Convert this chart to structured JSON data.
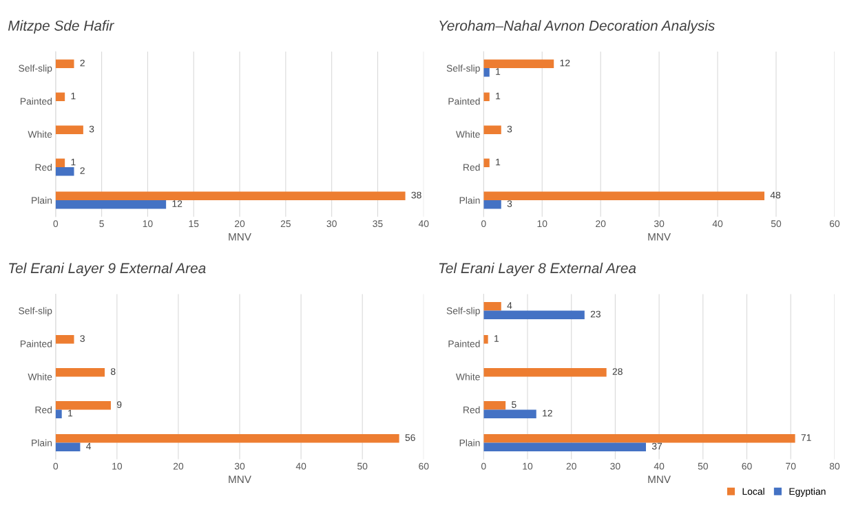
{
  "chart_data": [
    {
      "type": "bar",
      "orientation": "horizontal",
      "title": "Mitzpe Sde Hafir",
      "xlabel": "MNV",
      "categories": [
        "Self-slip",
        "Painted",
        "White",
        "Red",
        "Plain"
      ],
      "series": [
        {
          "color": "#ed7d31",
          "values": [
            2,
            1,
            3,
            1,
            38
          ]
        },
        {
          "color": "#4472c4",
          "values": [
            null,
            null,
            null,
            2,
            12
          ]
        }
      ],
      "xlim": [
        0,
        40
      ],
      "xticks": [
        0,
        5,
        10,
        15,
        20,
        25,
        30,
        35,
        40
      ],
      "grid": "x",
      "data_labels": true
    },
    {
      "type": "bar",
      "orientation": "horizontal",
      "title": "Yeroham–Nahal Avnon Decoration Analysis",
      "xlabel": "MNV",
      "categories": [
        "Self-slip",
        "Painted",
        "White",
        "Red",
        "Plain"
      ],
      "series": [
        {
          "color": "#ed7d31",
          "values": [
            12,
            1,
            3,
            1,
            48
          ]
        },
        {
          "color": "#4472c4",
          "values": [
            1,
            null,
            null,
            null,
            3
          ]
        }
      ],
      "xlim": [
        0,
        60
      ],
      "xticks": [
        0,
        10,
        20,
        30,
        40,
        50,
        60
      ],
      "grid": "x",
      "data_labels": true
    },
    {
      "type": "bar",
      "orientation": "horizontal",
      "title": "Tel Erani Layer 9 External Area",
      "xlabel": "MNV",
      "categories": [
        "Self-slip",
        "Painted",
        "White",
        "Red",
        "Plain"
      ],
      "series": [
        {
          "color": "#ed7d31",
          "values": [
            null,
            3,
            8,
            9,
            56
          ]
        },
        {
          "color": "#4472c4",
          "values": [
            null,
            null,
            null,
            1,
            4
          ]
        }
      ],
      "xlim": [
        0,
        60
      ],
      "xticks": [
        0,
        10,
        20,
        30,
        40,
        50,
        60
      ],
      "grid": "x",
      "data_labels": true
    },
    {
      "type": "bar",
      "orientation": "horizontal",
      "title": "Tel Erani Layer 8 External Area",
      "xlabel": "MNV",
      "categories": [
        "Self-slip",
        "Painted",
        "White",
        "Red",
        "Plain"
      ],
      "series": [
        {
          "name": "Local",
          "color": "#ed7d31",
          "values": [
            4,
            1,
            28,
            5,
            71
          ]
        },
        {
          "name": "Egyptian",
          "color": "#4472c4",
          "values": [
            23,
            null,
            null,
            12,
            37
          ]
        }
      ],
      "xlim": [
        0,
        80
      ],
      "xticks": [
        0,
        10,
        20,
        30,
        40,
        50,
        60,
        70,
        80
      ],
      "grid": "x",
      "data_labels": true,
      "legend": "bottom right"
    }
  ]
}
